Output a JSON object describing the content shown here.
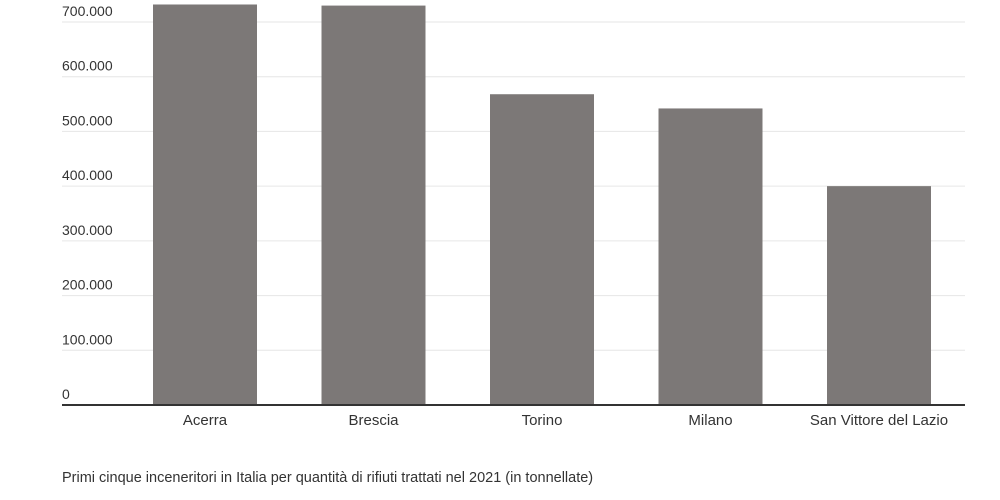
{
  "caption": "Primi cinque inceneritori in Italia per quantità di rifiuti trattati nel 2021 (in tonnellate)",
  "colors": {
    "bar": "#7c7877",
    "grid": "#e6e6e6",
    "axis": "#333333",
    "text": "#333333"
  },
  "chart_data": {
    "type": "bar",
    "title": "",
    "xlabel": "",
    "ylabel": "",
    "categories": [
      "Acerra",
      "Brescia",
      "Torino",
      "Milano",
      "San Vittore del Lazio"
    ],
    "values": [
      732000,
      730000,
      568000,
      542000,
      400000
    ],
    "ylim": [
      0,
      700000
    ],
    "yticks": [
      0,
      100000,
      200000,
      300000,
      400000,
      500000,
      600000,
      700000
    ],
    "ytick_labels": [
      "0",
      "100.000",
      "200.000",
      "300.000",
      "400.000",
      "500.000",
      "600.000",
      "700.000"
    ],
    "grid": true,
    "legend": "none"
  }
}
